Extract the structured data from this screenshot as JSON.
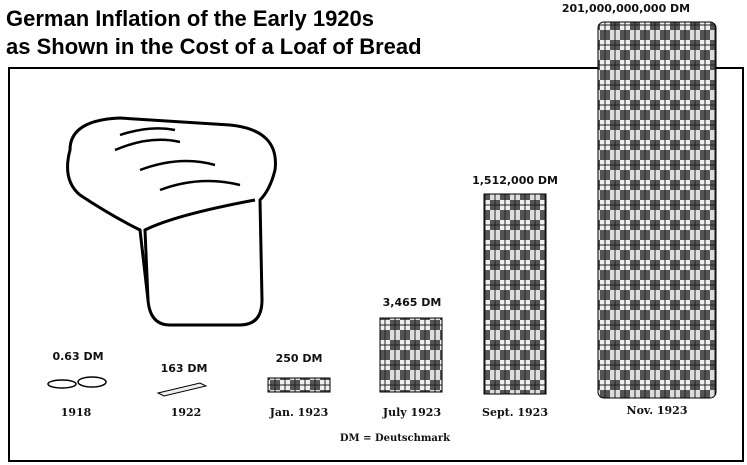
{
  "title": {
    "line1": "German Inflation of the Early 1920s",
    "line2": "as Shown in the Cost of a Loaf of Bread"
  },
  "items": [
    {
      "price": "0.63 DM",
      "date": "1918"
    },
    {
      "price": "163 DM",
      "date": "1922"
    },
    {
      "price": "250 DM",
      "date": "Jan. 1923"
    },
    {
      "price": "3,465 DM",
      "date": "July 1923"
    },
    {
      "price": "1,512,000 DM",
      "date": "Sept. 1923"
    },
    {
      "price": "201,000,000,000 DM",
      "date": "Nov. 1923"
    }
  ],
  "note": "DM = Deutschmark"
}
